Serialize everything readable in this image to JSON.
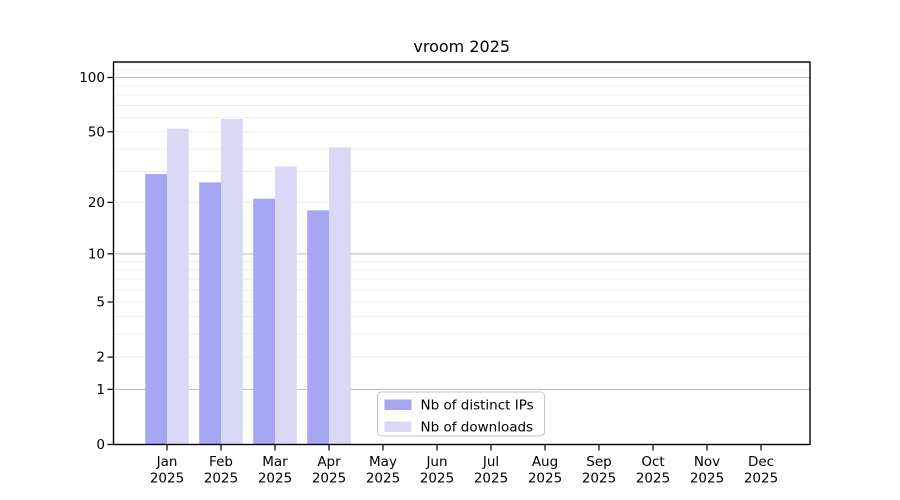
{
  "figure_title": "vroom 2025",
  "chart_data": {
    "type": "bar",
    "title": "vroom 2025",
    "y_scale": "log1p",
    "ylim": [
      0,
      122
    ],
    "y_ticks": [
      0,
      1,
      2,
      5,
      10,
      20,
      50,
      100
    ],
    "y_major_gridlines": [
      1,
      10,
      100
    ],
    "y_minor_gridlines": [
      2,
      3,
      4,
      5,
      6,
      7,
      8,
      9,
      20,
      30,
      40,
      50,
      60,
      70,
      80,
      90,
      110,
      120
    ],
    "months": [
      "Jan",
      "Feb",
      "Mar",
      "Apr",
      "May",
      "Jun",
      "Jul",
      "Aug",
      "Sep",
      "Oct",
      "Nov",
      "Dec"
    ],
    "year_label": "2025",
    "series": [
      {
        "name": "Nb of distinct IPs",
        "color": "#a6a6f2",
        "values": [
          29,
          26,
          21,
          18,
          null,
          null,
          null,
          null,
          null,
          null,
          null,
          null
        ]
      },
      {
        "name": "Nb of downloads",
        "color": "#d9d9f6",
        "values": [
          52,
          59,
          32,
          41,
          null,
          null,
          null,
          null,
          null,
          null,
          null,
          null
        ]
      }
    ],
    "grid": true,
    "legend_position": "inside-bottom-center",
    "colors": {
      "distinct_ips": "#a6a6f2",
      "downloads": "#d9d9f6",
      "grid_major": "#bdbdbd",
      "grid_minor": "#ededed",
      "axis": "#000000",
      "legend_border": "#c4c4c4",
      "background": "#ffffff"
    }
  }
}
